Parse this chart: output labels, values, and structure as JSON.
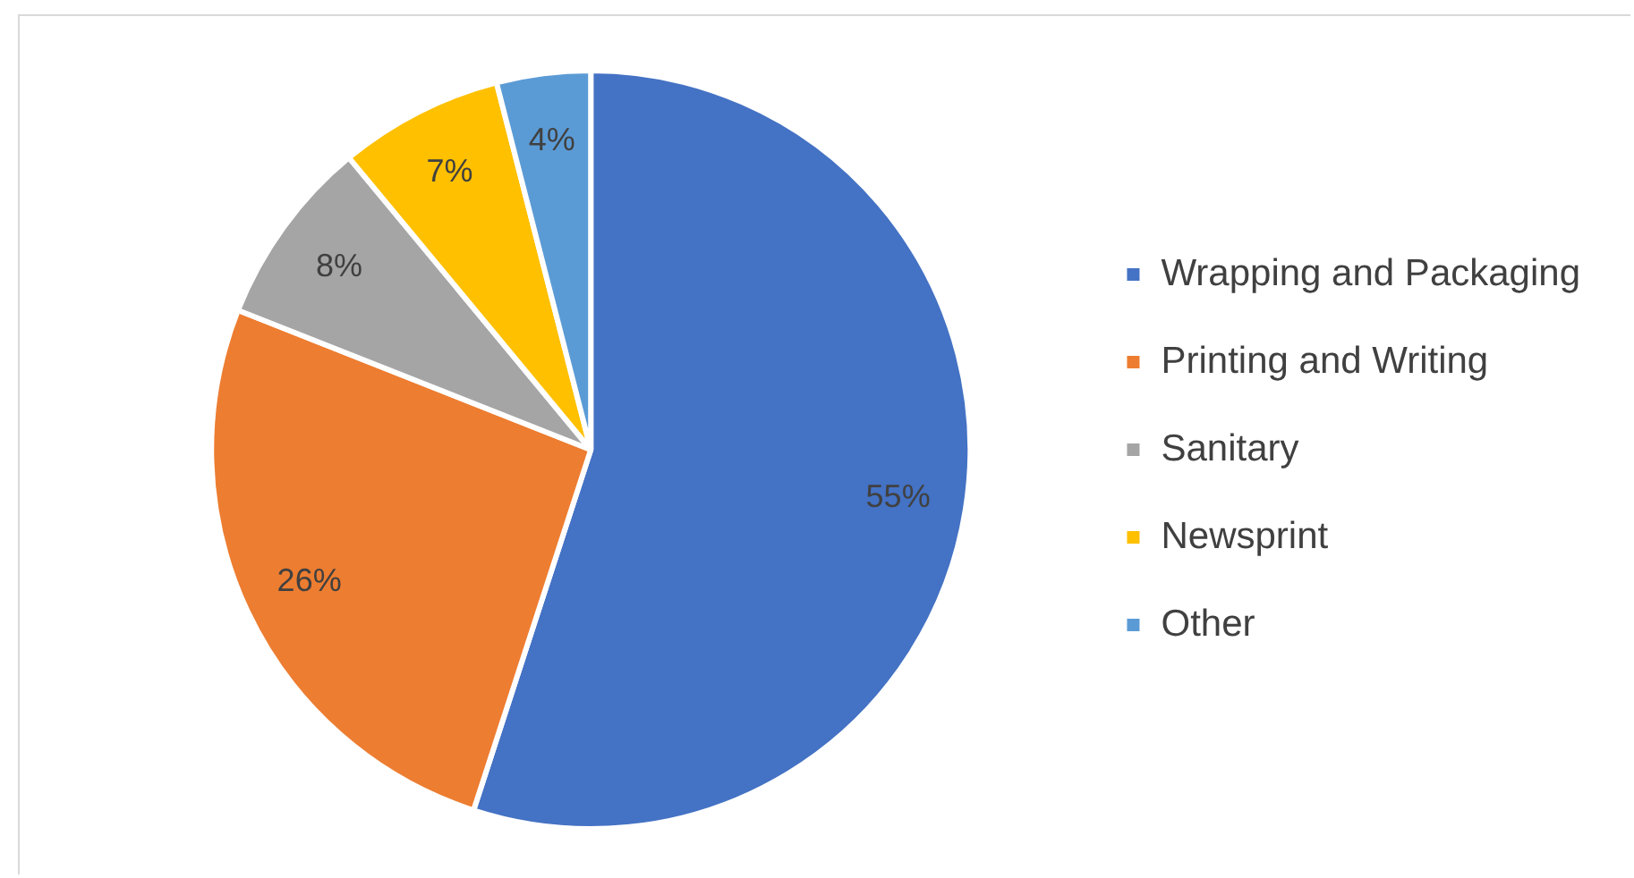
{
  "chart_data": {
    "type": "pie",
    "categories": [
      "Wrapping and Packaging",
      "Printing and Writing",
      "Sanitary",
      "Newsprint",
      "Other"
    ],
    "values": [
      55,
      26,
      8,
      7,
      4
    ],
    "colors": [
      "#4472c4",
      "#ed7d31",
      "#a5a5a5",
      "#ffc000",
      "#5b9bd5"
    ],
    "value_labels": [
      "55%",
      "26%",
      "8%",
      "7%",
      "4%"
    ],
    "legend": "right"
  }
}
